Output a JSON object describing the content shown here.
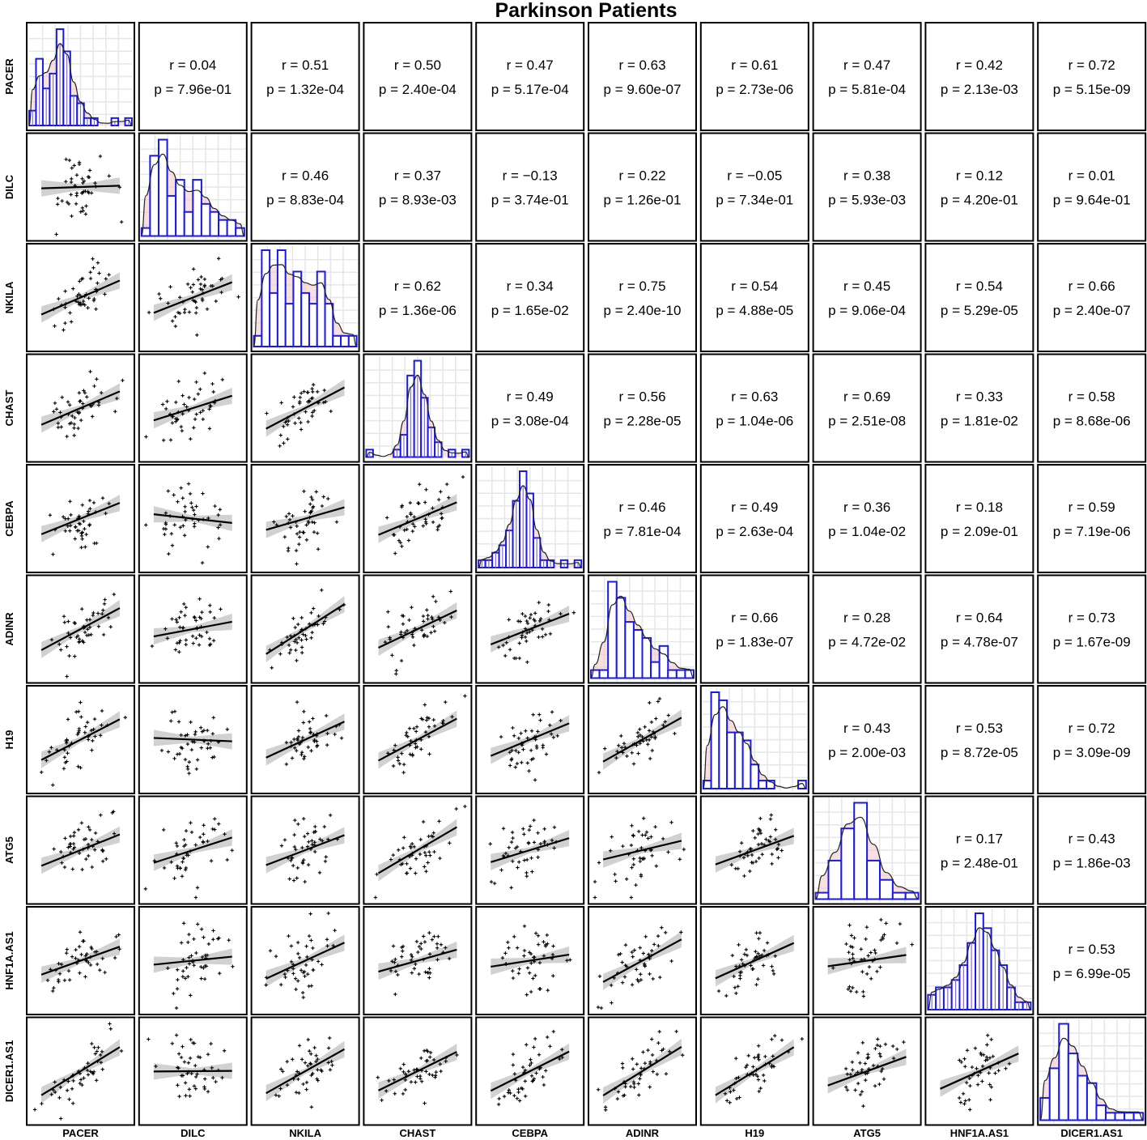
{
  "title": "Parkinson Patients",
  "colors": {
    "hist_outline": "#1a1ae6",
    "density_fill": "#f2c6c6",
    "ci_band": "#b3b3b3",
    "fit_line": "#000000"
  },
  "chart_data": {
    "type": "scatter",
    "subtype": "pairs-matrix",
    "title": "Parkinson Patients",
    "variables": [
      "PACER",
      "DILC",
      "NKILA",
      "CHAST",
      "CEBPA",
      "ADINR",
      "H19",
      "ATG5",
      "HNF1A.AS1",
      "DICER1.AS1"
    ],
    "diagonal": "histogram with density curve",
    "lower": "scatter with linear fit and confidence band",
    "grid": true,
    "correlations": [
      {
        "row": "PACER",
        "col": "DILC",
        "r": "r = 0.04",
        "p": "p = 7.96e-01",
        "r_value": 0.04
      },
      {
        "row": "PACER",
        "col": "NKILA",
        "r": "r = 0.51",
        "p": "p = 1.32e-04",
        "r_value": 0.51
      },
      {
        "row": "PACER",
        "col": "CHAST",
        "r": "r = 0.50",
        "p": "p = 2.40e-04",
        "r_value": 0.5
      },
      {
        "row": "PACER",
        "col": "CEBPA",
        "r": "r = 0.47",
        "p": "p = 5.17e-04",
        "r_value": 0.47
      },
      {
        "row": "PACER",
        "col": "ADINR",
        "r": "r = 0.63",
        "p": "p = 9.60e-07",
        "r_value": 0.63
      },
      {
        "row": "PACER",
        "col": "H19",
        "r": "r = 0.61",
        "p": "p = 2.73e-06",
        "r_value": 0.61
      },
      {
        "row": "PACER",
        "col": "ATG5",
        "r": "r = 0.47",
        "p": "p = 5.81e-04",
        "r_value": 0.47
      },
      {
        "row": "PACER",
        "col": "HNF1A.AS1",
        "r": "r = 0.42",
        "p": "p = 2.13e-03",
        "r_value": 0.42
      },
      {
        "row": "PACER",
        "col": "DICER1.AS1",
        "r": "r = 0.72",
        "p": "p = 5.15e-09",
        "r_value": 0.72
      },
      {
        "row": "DILC",
        "col": "NKILA",
        "r": "r = 0.46",
        "p": "p = 8.83e-04",
        "r_value": 0.46
      },
      {
        "row": "DILC",
        "col": "CHAST",
        "r": "r = 0.37",
        "p": "p = 8.93e-03",
        "r_value": 0.37
      },
      {
        "row": "DILC",
        "col": "CEBPA",
        "r": "r = −0.13",
        "p": "p = 3.74e-01",
        "r_value": -0.13
      },
      {
        "row": "DILC",
        "col": "ADINR",
        "r": "r = 0.22",
        "p": "p = 1.26e-01",
        "r_value": 0.22
      },
      {
        "row": "DILC",
        "col": "H19",
        "r": "r = −0.05",
        "p": "p = 7.34e-01",
        "r_value": -0.05
      },
      {
        "row": "DILC",
        "col": "ATG5",
        "r": "r = 0.38",
        "p": "p = 5.93e-03",
        "r_value": 0.38
      },
      {
        "row": "DILC",
        "col": "HNF1A.AS1",
        "r": "r = 0.12",
        "p": "p = 4.20e-01",
        "r_value": 0.12
      },
      {
        "row": "DILC",
        "col": "DICER1.AS1",
        "r": "r = 0.01",
        "p": "p = 9.64e-01",
        "r_value": 0.01
      },
      {
        "row": "NKILA",
        "col": "CHAST",
        "r": "r = 0.62",
        "p": "p = 1.36e-06",
        "r_value": 0.62
      },
      {
        "row": "NKILA",
        "col": "CEBPA",
        "r": "r = 0.34",
        "p": "p = 1.65e-02",
        "r_value": 0.34
      },
      {
        "row": "NKILA",
        "col": "ADINR",
        "r": "r = 0.75",
        "p": "p = 2.40e-10",
        "r_value": 0.75
      },
      {
        "row": "NKILA",
        "col": "H19",
        "r": "r = 0.54",
        "p": "p = 4.88e-05",
        "r_value": 0.54
      },
      {
        "row": "NKILA",
        "col": "ATG5",
        "r": "r = 0.45",
        "p": "p = 9.06e-04",
        "r_value": 0.45
      },
      {
        "row": "NKILA",
        "col": "HNF1A.AS1",
        "r": "r = 0.54",
        "p": "p = 5.29e-05",
        "r_value": 0.54
      },
      {
        "row": "NKILA",
        "col": "DICER1.AS1",
        "r": "r = 0.66",
        "p": "p = 2.40e-07",
        "r_value": 0.66
      },
      {
        "row": "CHAST",
        "col": "CEBPA",
        "r": "r = 0.49",
        "p": "p = 3.08e-04",
        "r_value": 0.49
      },
      {
        "row": "CHAST",
        "col": "ADINR",
        "r": "r = 0.56",
        "p": "p = 2.28e-05",
        "r_value": 0.56
      },
      {
        "row": "CHAST",
        "col": "H19",
        "r": "r = 0.63",
        "p": "p = 1.04e-06",
        "r_value": 0.63
      },
      {
        "row": "CHAST",
        "col": "ATG5",
        "r": "r = 0.69",
        "p": "p = 2.51e-08",
        "r_value": 0.69
      },
      {
        "row": "CHAST",
        "col": "HNF1A.AS1",
        "r": "r = 0.33",
        "p": "p = 1.81e-02",
        "r_value": 0.33
      },
      {
        "row": "CHAST",
        "col": "DICER1.AS1",
        "r": "r = 0.58",
        "p": "p = 8.68e-06",
        "r_value": 0.58
      },
      {
        "row": "CEBPA",
        "col": "ADINR",
        "r": "r = 0.46",
        "p": "p = 7.81e-04",
        "r_value": 0.46
      },
      {
        "row": "CEBPA",
        "col": "H19",
        "r": "r = 0.49",
        "p": "p = 2.63e-04",
        "r_value": 0.49
      },
      {
        "row": "CEBPA",
        "col": "ATG5",
        "r": "r = 0.36",
        "p": "p = 1.04e-02",
        "r_value": 0.36
      },
      {
        "row": "CEBPA",
        "col": "HNF1A.AS1",
        "r": "r = 0.18",
        "p": "p = 2.09e-01",
        "r_value": 0.18
      },
      {
        "row": "CEBPA",
        "col": "DICER1.AS1",
        "r": "r = 0.59",
        "p": "p = 7.19e-06",
        "r_value": 0.59
      },
      {
        "row": "ADINR",
        "col": "H19",
        "r": "r = 0.66",
        "p": "p = 1.83e-07",
        "r_value": 0.66
      },
      {
        "row": "ADINR",
        "col": "ATG5",
        "r": "r = 0.28",
        "p": "p = 4.72e-02",
        "r_value": 0.28
      },
      {
        "row": "ADINR",
        "col": "HNF1A.AS1",
        "r": "r = 0.64",
        "p": "p = 4.78e-07",
        "r_value": 0.64
      },
      {
        "row": "ADINR",
        "col": "DICER1.AS1",
        "r": "r = 0.73",
        "p": "p = 1.67e-09",
        "r_value": 0.73
      },
      {
        "row": "H19",
        "col": "ATG5",
        "r": "r = 0.43",
        "p": "p = 2.00e-03",
        "r_value": 0.43
      },
      {
        "row": "H19",
        "col": "HNF1A.AS1",
        "r": "r = 0.53",
        "p": "p = 8.72e-05",
        "r_value": 0.53
      },
      {
        "row": "H19",
        "col": "DICER1.AS1",
        "r": "r = 0.72",
        "p": "p = 3.09e-09",
        "r_value": 0.72
      },
      {
        "row": "ATG5",
        "col": "HNF1A.AS1",
        "r": "r = 0.17",
        "p": "p = 2.48e-01",
        "r_value": 0.17
      },
      {
        "row": "ATG5",
        "col": "DICER1.AS1",
        "r": "r = 0.43",
        "p": "p = 1.86e-03",
        "r_value": 0.43
      },
      {
        "row": "HNF1A.AS1",
        "col": "DICER1.AS1",
        "r": "r = 0.53",
        "p": "p = 6.99e-05",
        "r_value": 0.53
      }
    ],
    "histograms": {
      "PACER": [
        4,
        18,
        10,
        14,
        26,
        20,
        8,
        6,
        2,
        2,
        0,
        0,
        2,
        0,
        2
      ],
      "DILC": [
        2,
        20,
        24,
        10,
        14,
        6,
        14,
        8,
        6,
        4,
        4,
        2
      ],
      "NKILA": [
        2,
        18,
        10,
        18,
        8,
        14,
        10,
        8,
        14,
        8,
        2,
        2,
        2
      ],
      "CHAST": [
        2,
        0,
        0,
        0,
        2,
        6,
        22,
        26,
        16,
        8,
        4,
        0,
        2,
        0,
        2
      ],
      "CEBPA": [
        2,
        2,
        4,
        6,
        10,
        18,
        26,
        20,
        8,
        2,
        2,
        0,
        2,
        0,
        2
      ],
      "ADINR": [
        2,
        2,
        24,
        20,
        14,
        12,
        10,
        4,
        8,
        2,
        2,
        2
      ],
      "H19": [
        2,
        24,
        22,
        14,
        14,
        12,
        6,
        2,
        2,
        0,
        0,
        0,
        2
      ],
      "ATG5": [
        2,
        12,
        22,
        30,
        12,
        6,
        2,
        2
      ],
      "HNF1A.AS1": [
        4,
        6,
        6,
        8,
        12,
        18,
        26,
        22,
        16,
        12,
        6,
        2,
        2
      ],
      "DICER1.AS1": [
        6,
        14,
        26,
        18,
        12,
        10,
        4,
        2,
        2,
        2,
        2
      ]
    }
  }
}
